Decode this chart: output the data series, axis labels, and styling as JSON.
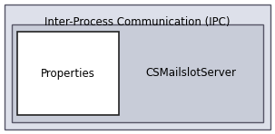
{
  "outer_box": {
    "label": "Inter-Process Communication (IPC)",
    "bg_color": "#dde0ea",
    "edge_color": "#555566",
    "label_fontsize": 8.5,
    "label_color": "#000000"
  },
  "inner_box": {
    "bg_color": "#c8ccd8",
    "edge_color": "#555566",
    "linewidth": 1.0
  },
  "properties_box": {
    "label": "Properties",
    "bg_color": "#ffffff",
    "edge_color": "#222222",
    "label_fontsize": 8.5,
    "label_color": "#000000",
    "linewidth": 1.2
  },
  "cs_label": {
    "text": "CSMailslotServer",
    "fontsize": 8.5,
    "color": "#000000"
  },
  "fig_width": 3.03,
  "fig_height": 1.48,
  "dpi": 100,
  "bg_color": "#ffffff"
}
